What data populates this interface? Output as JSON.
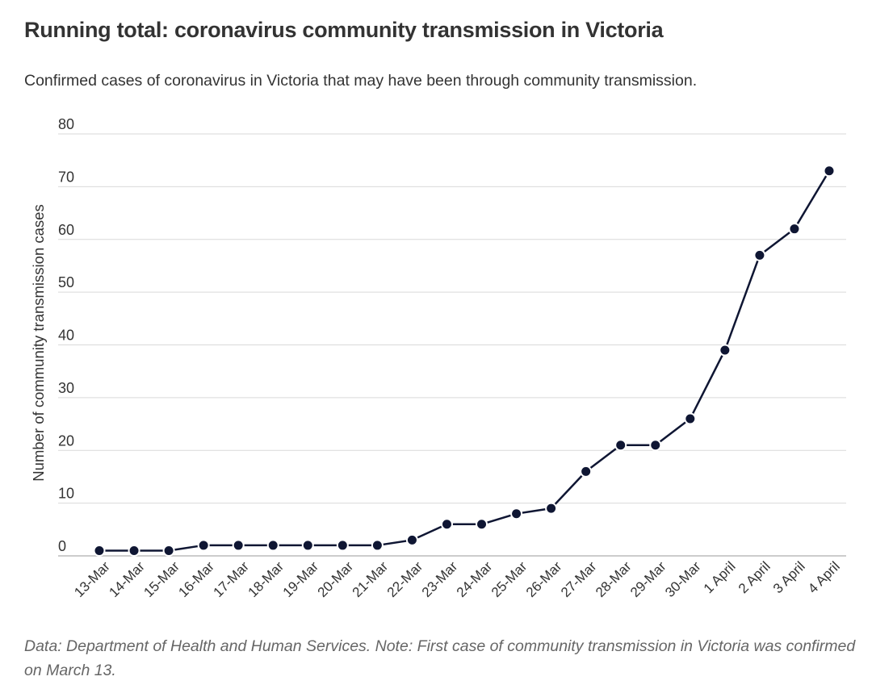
{
  "title": "Running total: coronavirus community transmission in Victoria",
  "subtitle": "Confirmed cases of coronavirus in Victoria that may have been through community transmission.",
  "note": "Data: Department of Health and Human Services. Note: First case of community transmission in Victoria was confirmed on March 13.",
  "colors": {
    "line": "#0f1633",
    "grid": "#d9d9d9",
    "axis": "#bbbbbb"
  },
  "chart_data": {
    "type": "line",
    "title": "Running total: coronavirus community transmission in Victoria",
    "subtitle": "Confirmed cases of coronavirus in Victoria that may have been through community transmission.",
    "xlabel": "",
    "ylabel": "Number of community transmission cases",
    "ylim": [
      0,
      80
    ],
    "yticks": [
      0,
      10,
      20,
      30,
      40,
      50,
      60,
      70,
      80
    ],
    "grid": true,
    "categories": [
      "13-Mar",
      "14-Mar",
      "15-Mar",
      "16-Mar",
      "17-Mar",
      "18-Mar",
      "19-Mar",
      "20-Mar",
      "21-Mar",
      "22-Mar",
      "23-Mar",
      "24-Mar",
      "25-Mar",
      "26-Mar",
      "27-Mar",
      "28-Mar",
      "29-Mar",
      "30-Mar",
      "1 April",
      "2 April",
      "3 April",
      "4 April"
    ],
    "series": [
      {
        "values": [
          1,
          1,
          1,
          2,
          2,
          2,
          2,
          2,
          2,
          3,
          6,
          6,
          8,
          9,
          16,
          21,
          21,
          26,
          39,
          57,
          62,
          73
        ]
      }
    ]
  }
}
